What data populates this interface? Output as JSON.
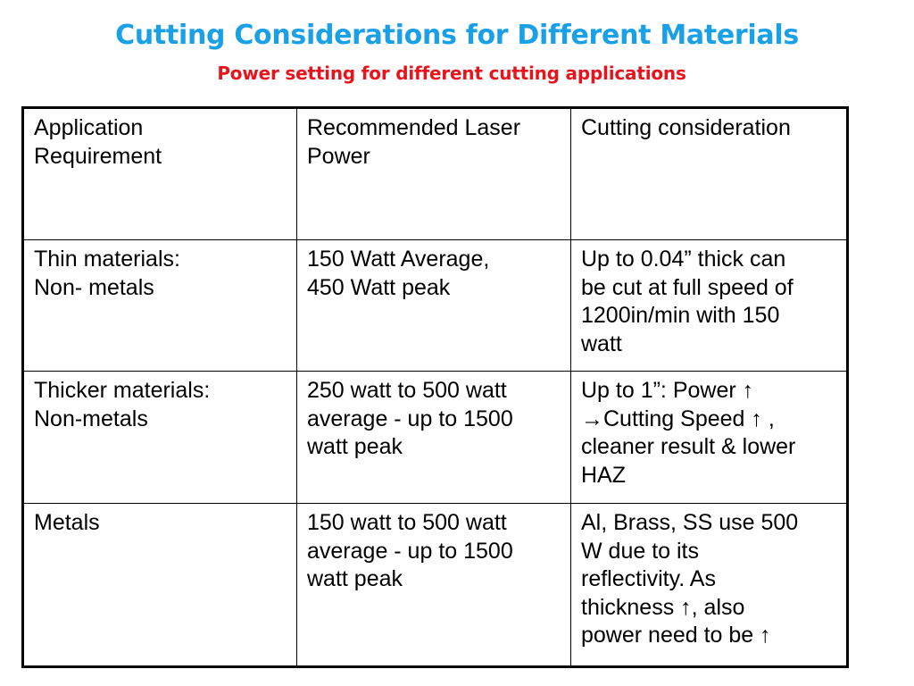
{
  "title": "Cutting Considerations for Different Materials",
  "subtitle": "Power setting for different cutting applications",
  "table": {
    "header": [
      "Application\nRequirement",
      "Recommended Laser\nPower",
      "Cutting consideration"
    ],
    "rows": [
      [
        "Thin materials:\nNon- metals",
        "150 Watt Average,\n450 Watt peak",
        "Up to 0.04” thick can\nbe cut at full speed of\n1200in/min with 150\nwatt"
      ],
      [
        "Thicker materials:\nNon-metals",
        "250 watt to 500 watt\naverage - up to 1500\nwatt peak",
        "Up to 1”: Power ↑\n→Cutting Speed ↑ ,\ncleaner result & lower\nHAZ"
      ],
      [
        "Metals",
        "150 watt to 500 watt\naverage - up to 1500\nwatt peak",
        "Al, Brass, SS use 500\nW due to its\nreflectivity. As\nthickness ↑, also\npower need to be ↑"
      ]
    ]
  }
}
